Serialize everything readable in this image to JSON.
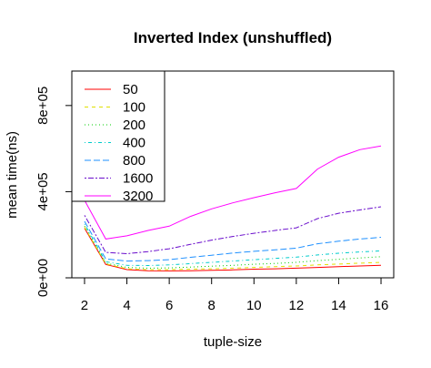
{
  "chart_data": {
    "type": "line",
    "title": "Inverted Index (unshuffled)",
    "xlabel": "tuple-size",
    "ylabel": "mean time(ns)",
    "xlim": [
      1.4,
      16.6
    ],
    "ylim": [
      0,
      960000
    ],
    "x_ticks": [
      2,
      4,
      6,
      8,
      10,
      12,
      14,
      16
    ],
    "x_tick_labels": [
      "2",
      "4",
      "6",
      "8",
      "10",
      "12",
      "14",
      "16"
    ],
    "y_ticks": [
      0,
      400000,
      800000
    ],
    "y_tick_labels": [
      "0e+00",
      "4e+05",
      "8e+05"
    ],
    "legend_position": "top-left",
    "grid": false,
    "x": [
      2,
      3,
      4,
      5,
      6,
      7,
      8,
      9,
      10,
      11,
      12,
      13,
      14,
      15,
      16
    ],
    "series": [
      {
        "name": "50",
        "color": "#FF0000",
        "dash": "solid",
        "values": [
          230000,
          62000,
          38000,
          33000,
          32000,
          33000,
          35000,
          37000,
          40000,
          42000,
          45000,
          48000,
          52000,
          55000,
          58000
        ]
      },
      {
        "name": "100",
        "color": "#E0E000",
        "dash": "dashed",
        "values": [
          235000,
          65000,
          42000,
          38000,
          38000,
          40000,
          42000,
          45000,
          48000,
          52000,
          55000,
          60000,
          64000,
          68000,
          72000
        ]
      },
      {
        "name": "200",
        "color": "#00CC00",
        "dash": "dotted",
        "values": [
          240000,
          68000,
          48000,
          45000,
          46000,
          50000,
          54000,
          58000,
          63000,
          67000,
          72000,
          80000,
          86000,
          92000,
          98000
        ]
      },
      {
        "name": "400",
        "color": "#00CCCC",
        "dash": "dotdash",
        "values": [
          250000,
          75000,
          58000,
          57000,
          60000,
          66000,
          72000,
          78000,
          84000,
          90000,
          96000,
          106000,
          114000,
          120000,
          125000
        ]
      },
      {
        "name": "800",
        "color": "#1E90FF",
        "dash": "longdash",
        "values": [
          262000,
          88000,
          78000,
          80000,
          84000,
          95000,
          105000,
          115000,
          123000,
          130000,
          138000,
          158000,
          170000,
          180000,
          188000
        ]
      },
      {
        "name": "1600",
        "color": "#6A0DCC",
        "dash": "twodash",
        "values": [
          290000,
          118000,
          112000,
          122000,
          135000,
          155000,
          175000,
          192000,
          207000,
          220000,
          232000,
          275000,
          300000,
          315000,
          330000
        ]
      },
      {
        "name": "3200",
        "color": "#FF00FF",
        "dash": "solid",
        "values": [
          360000,
          180000,
          195000,
          220000,
          240000,
          285000,
          320000,
          348000,
          372000,
          395000,
          415000,
          505000,
          560000,
          595000,
          612000
        ]
      }
    ]
  }
}
